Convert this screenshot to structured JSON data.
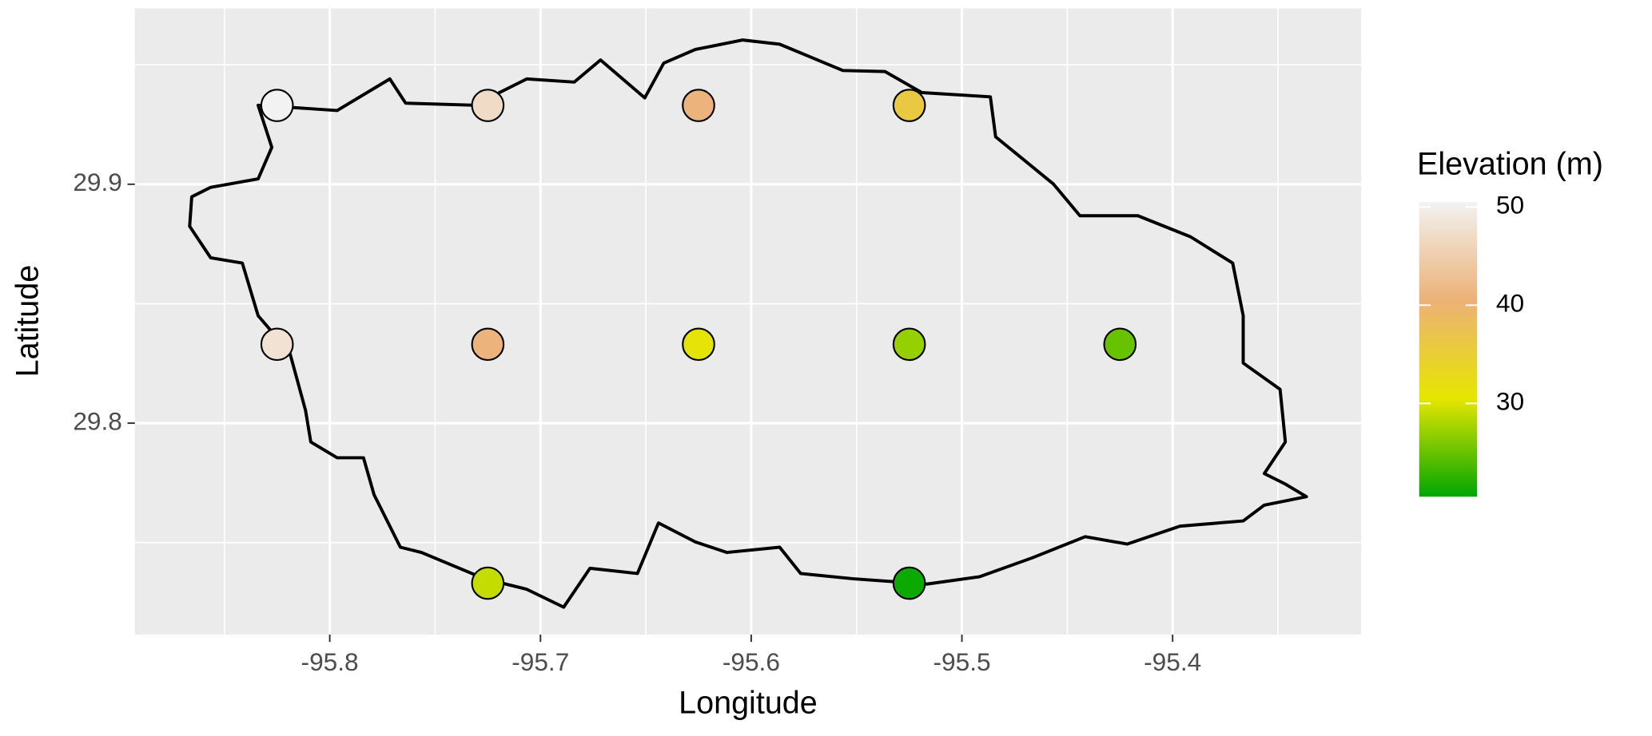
{
  "chart_data": {
    "type": "scatter",
    "x_label": "Longitude",
    "y_label": "Latitude",
    "legend_title": "Elevation (m)",
    "x": [
      -95.825,
      -95.725,
      -95.625,
      -95.525,
      -95.825,
      -95.725,
      -95.625,
      -95.525,
      -95.425,
      -95.725,
      -95.525
    ],
    "y": [
      29.933,
      29.933,
      29.933,
      29.933,
      29.833,
      29.833,
      29.833,
      29.833,
      29.833,
      29.733,
      29.733
    ],
    "values": [
      51,
      47,
      41,
      36,
      48,
      41,
      31,
      27,
      25,
      29,
      21
    ],
    "xlim": [
      -95.8925,
      -95.3105
    ],
    "ylim": [
      29.7115,
      29.9736
    ],
    "xticks": [
      -95.8,
      -95.7,
      -95.6,
      -95.5,
      -95.4
    ],
    "yticks": [
      29.8,
      29.9
    ],
    "colorlim": [
      20.5,
      50.5
    ],
    "colorticks": [
      30,
      40,
      50
    ],
    "colorscale": [
      "#00a600",
      "#e6e600",
      "#ecb176",
      "#f2f2f2"
    ],
    "grid": true
  }
}
